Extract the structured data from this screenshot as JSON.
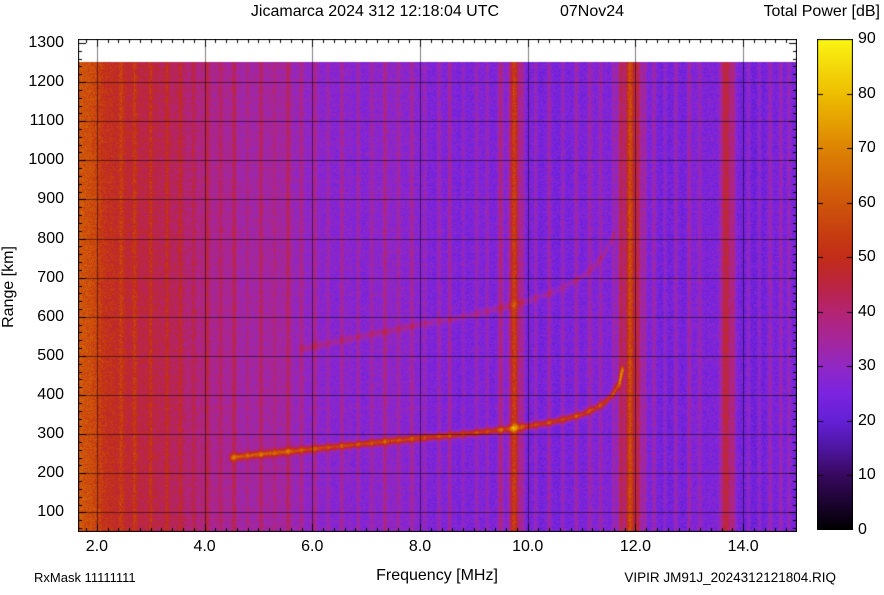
{
  "header": {
    "title_left": "Jicamarca 2024 312 12:18:04 UTC",
    "title_right": "07Nov24",
    "colorbar_title": "Total Power [dB]"
  },
  "footer": {
    "rx_mask": "RxMask 11111111",
    "file_info": "VIPIR  JM91J_2024312121804.RIQ"
  },
  "chart_data": {
    "type": "heatmap",
    "title": "Jicamarca 2024 312 12:18:04 UTC  07Nov24",
    "xlabel": "Frequency [MHz]",
    "ylabel": "Range [km]",
    "xlim": [
      1.65,
      15.0
    ],
    "ylim": [
      50,
      1310
    ],
    "data_top_km": 1250,
    "grid": true,
    "x_ticks": [
      2,
      4,
      6,
      8,
      10,
      12,
      14
    ],
    "x_tick_labels": [
      "2.0",
      "4.0",
      "6.0",
      "8.0",
      "10.0",
      "12.0",
      "14.0"
    ],
    "x_minor_step": 0.2,
    "y_ticks": [
      100,
      200,
      300,
      400,
      500,
      600,
      700,
      800,
      900,
      1000,
      1100,
      1200,
      1300
    ],
    "y_tick_labels": [
      "100",
      "200",
      "300",
      "400",
      "500",
      "600",
      "700",
      "800",
      "900",
      "1000",
      "1100",
      "1200",
      "1300"
    ],
    "y_minor_step": 20,
    "colorbar": {
      "title": "Total Power [dB]",
      "min": 0,
      "max": 90,
      "tick_values": [
        0,
        10,
        20,
        30,
        40,
        50,
        60,
        70,
        80,
        90
      ],
      "tick_labels": [
        "0",
        "10",
        "20",
        "30",
        "40",
        "50",
        "60",
        "70",
        "80",
        "90"
      ],
      "stops": [
        [
          0,
          "#000000"
        ],
        [
          5,
          "#1c0430"
        ],
        [
          10,
          "#38095e"
        ],
        [
          15,
          "#4e16a0"
        ],
        [
          20,
          "#6420d6"
        ],
        [
          25,
          "#7b24e0"
        ],
        [
          30,
          "#9128c4"
        ],
        [
          35,
          "#a62699"
        ],
        [
          40,
          "#b42472"
        ],
        [
          45,
          "#bb2540"
        ],
        [
          50,
          "#c22d18"
        ],
        [
          55,
          "#c84010"
        ],
        [
          60,
          "#cf560a"
        ],
        [
          70,
          "#dd8403"
        ],
        [
          80,
          "#eebe00"
        ],
        [
          90,
          "#fbf514"
        ]
      ]
    },
    "background_profile": [
      [
        1.65,
        60
      ],
      [
        1.9,
        57
      ],
      [
        2.2,
        52
      ],
      [
        2.6,
        48
      ],
      [
        3.0,
        44
      ],
      [
        3.5,
        41
      ],
      [
        4.0,
        38
      ],
      [
        4.5,
        36
      ],
      [
        5.0,
        34
      ],
      [
        5.5,
        32
      ],
      [
        6.0,
        30
      ],
      [
        6.5,
        28.5
      ],
      [
        7.0,
        27.5
      ],
      [
        8.0,
        26.5
      ],
      [
        9.0,
        25.5
      ],
      [
        10.0,
        25
      ],
      [
        12.0,
        24.5
      ],
      [
        15.0,
        24
      ]
    ],
    "noise_db": 4.5,
    "rfi_stripes": [
      {
        "f": 9.5,
        "amp": 14,
        "w": 0.05
      },
      {
        "f": 9.75,
        "amp": 30,
        "w": 0.09
      },
      {
        "f": 9.9,
        "amp": 10,
        "w": 0.04
      },
      {
        "f": 11.6,
        "amp": 10,
        "w": 0.04
      },
      {
        "f": 11.73,
        "amp": 18,
        "w": 0.06
      },
      {
        "f": 11.9,
        "amp": 32,
        "w": 0.09
      },
      {
        "f": 12.05,
        "amp": 18,
        "w": 0.06
      },
      {
        "f": 12.17,
        "amp": 10,
        "w": 0.04
      },
      {
        "f": 13.68,
        "amp": 22,
        "w": 0.1
      },
      {
        "f": 13.82,
        "amp": 10,
        "w": 0.04
      }
    ],
    "weak_stripes": [
      [
        2.45,
        7
      ],
      [
        2.7,
        6
      ],
      [
        3.0,
        8
      ],
      [
        3.3,
        6
      ],
      [
        3.55,
        7
      ],
      [
        3.8,
        5
      ],
      [
        4.05,
        8
      ],
      [
        4.3,
        6
      ],
      [
        4.55,
        9
      ],
      [
        4.8,
        6
      ],
      [
        5.05,
        8
      ],
      [
        5.3,
        6
      ],
      [
        5.55,
        9
      ],
      [
        5.8,
        6
      ],
      [
        6.05,
        8
      ],
      [
        6.3,
        6
      ],
      [
        6.55,
        10
      ],
      [
        6.85,
        8
      ],
      [
        7.1,
        6
      ],
      [
        7.35,
        9
      ],
      [
        7.6,
        6
      ],
      [
        7.85,
        8
      ],
      [
        8.1,
        6
      ],
      [
        8.35,
        7
      ],
      [
        8.55,
        11
      ],
      [
        8.8,
        6
      ],
      [
        9.05,
        8
      ],
      [
        9.25,
        7
      ],
      [
        10.15,
        8
      ],
      [
        10.4,
        10
      ],
      [
        10.65,
        7
      ],
      [
        10.9,
        9
      ],
      [
        11.15,
        7
      ],
      [
        11.35,
        8
      ],
      [
        12.35,
        8
      ],
      [
        12.55,
        7
      ],
      [
        12.75,
        9
      ],
      [
        13.0,
        10
      ],
      [
        13.2,
        7
      ],
      [
        14.1,
        8
      ],
      [
        14.3,
        7
      ],
      [
        14.5,
        9
      ],
      [
        14.7,
        10
      ],
      [
        14.85,
        7
      ]
    ],
    "weak_stripe_w": 0.035,
    "echo_trace": {
      "label": "F-region echo trace",
      "points": [
        [
          4.5,
          240
        ],
        [
          5.0,
          248
        ],
        [
          5.5,
          255
        ],
        [
          6.0,
          262
        ],
        [
          6.5,
          269
        ],
        [
          7.0,
          276
        ],
        [
          7.5,
          283
        ],
        [
          8.0,
          290
        ],
        [
          8.5,
          296
        ],
        [
          9.0,
          303
        ],
        [
          9.5,
          311
        ],
        [
          10.0,
          320
        ],
        [
          10.5,
          332
        ],
        [
          11.0,
          350
        ],
        [
          11.25,
          365
        ],
        [
          11.45,
          383
        ],
        [
          11.6,
          405
        ],
        [
          11.7,
          430
        ],
        [
          11.76,
          465
        ]
      ],
      "amp": 27,
      "sigma_km": 6
    },
    "second_hop_trace": {
      "label": "second-hop echo trace",
      "points": [
        [
          5.8,
          518
        ],
        [
          6.0,
          524
        ],
        [
          6.5,
          538
        ],
        [
          7.0,
          552
        ],
        [
          7.5,
          566
        ],
        [
          8.0,
          580
        ],
        [
          8.5,
          592
        ],
        [
          9.0,
          606
        ],
        [
          9.5,
          622
        ],
        [
          10.0,
          640
        ],
        [
          10.5,
          664
        ],
        [
          11.0,
          700
        ],
        [
          11.25,
          730
        ],
        [
          11.45,
          766
        ],
        [
          11.6,
          810
        ]
      ],
      "amp": 8,
      "sigma_km": 6
    }
  }
}
